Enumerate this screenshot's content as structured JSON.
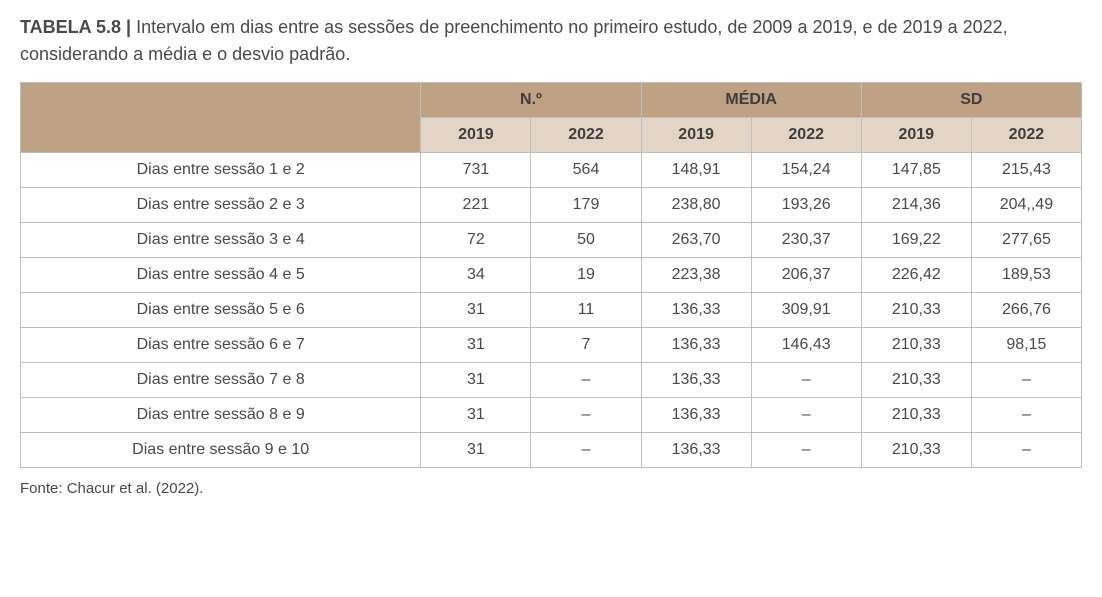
{
  "title": {
    "label": "TABELA 5.8 | ",
    "text": "Intervalo em dias entre as sessões de preenchimento no primeiro estudo, de 2009 a 2019, e de 2019 a 2022, considerando a média e o desvio padrão."
  },
  "columns": {
    "groups": [
      "N.º",
      "MÉDIA",
      "SD"
    ],
    "years": [
      "2019",
      "2022"
    ]
  },
  "rows": [
    {
      "label": "Dias entre sessão 1 e 2",
      "n2019": "731",
      "n2022": "564",
      "m2019": "148,91",
      "m2022": "154,24",
      "sd2019": "147,85",
      "sd2022": "215,43"
    },
    {
      "label": "Dias entre sessão 2 e 3",
      "n2019": "221",
      "n2022": "179",
      "m2019": "238,80",
      "m2022": "193,26",
      "sd2019": "214,36",
      "sd2022": "204,,49"
    },
    {
      "label": "Dias entre sessão 3 e 4",
      "n2019": "72",
      "n2022": "50",
      "m2019": "263,70",
      "m2022": "230,37",
      "sd2019": "169,22",
      "sd2022": "277,65"
    },
    {
      "label": "Dias entre sessão 4 e 5",
      "n2019": "34",
      "n2022": "19",
      "m2019": "223,38",
      "m2022": "206,37",
      "sd2019": "226,42",
      "sd2022": "189,53"
    },
    {
      "label": "Dias entre sessão 5 e 6",
      "n2019": "31",
      "n2022": "11",
      "m2019": "136,33",
      "m2022": "309,91",
      "sd2019": "210,33",
      "sd2022": "266,76"
    },
    {
      "label": "Dias entre sessão 6 e 7",
      "n2019": "31",
      "n2022": "7",
      "m2019": "136,33",
      "m2022": "146,43",
      "sd2019": "210,33",
      "sd2022": "98,15"
    },
    {
      "label": "Dias entre sessão 7 e 8",
      "n2019": "31",
      "n2022": "–",
      "m2019": "136,33",
      "m2022": "–",
      "sd2019": "210,33",
      "sd2022": "–"
    },
    {
      "label": "Dias entre sessão 8 e 9",
      "n2019": "31",
      "n2022": "–",
      "m2019": "136,33",
      "m2022": "–",
      "sd2019": "210,33",
      "sd2022": "–"
    },
    {
      "label": "Dias entre sessão 9 e 10",
      "n2019": "31",
      "n2022": "–",
      "m2019": "136,33",
      "m2022": "–",
      "sd2019": "210,33",
      "sd2022": "–"
    }
  ],
  "source": "Fonte: Chacur et al. (2022).",
  "style": {
    "header_group_bg": "#bfa184",
    "header_year_bg": "#e3d5c5",
    "border_color": "#bfbfbf",
    "text_color": "#4a4a4a",
    "font_size_body": 16,
    "font_size_title": 18
  }
}
